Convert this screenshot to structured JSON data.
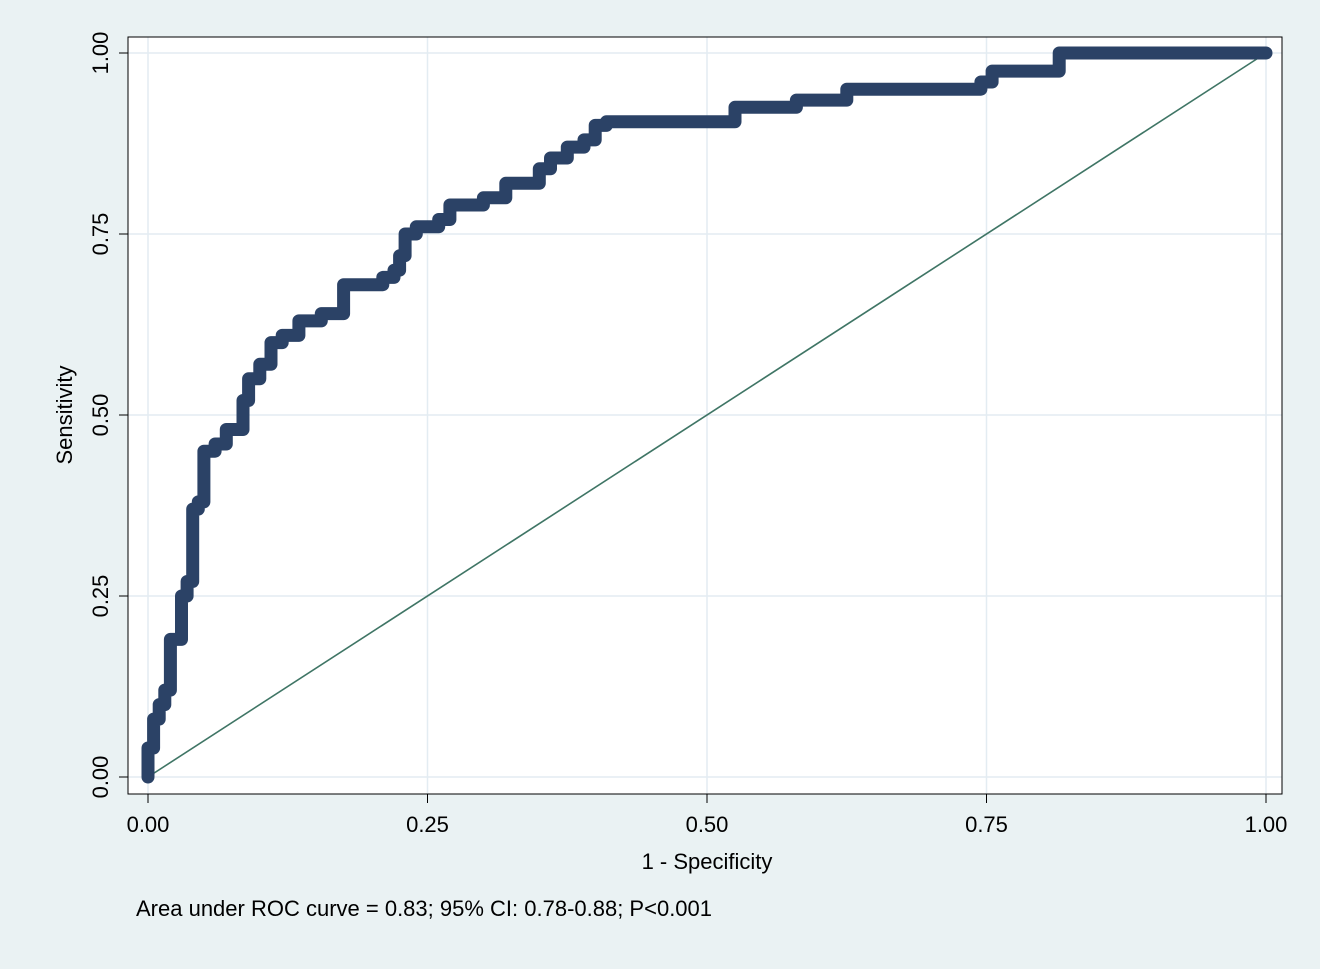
{
  "chart_data": {
    "type": "line",
    "title": "",
    "xlabel": "1 - Specificity",
    "ylabel": "Sensitivity",
    "xlim": [
      0,
      1
    ],
    "ylim": [
      0,
      1
    ],
    "x_ticks": [
      "0.00",
      "0.25",
      "0.50",
      "0.75",
      "1.00"
    ],
    "y_ticks": [
      "0.00",
      "0.25",
      "0.50",
      "0.75",
      "1.00"
    ],
    "grid": true,
    "note": "Area under ROC curve = 0.83; 95% CI: 0.78-0.88; P<0.001",
    "colors": {
      "roc": "#2b4266",
      "reference": "#3f7565",
      "background": "#eaf2f3",
      "plot_bg": "#ffffff",
      "grid": "#e3ecf2"
    },
    "series": [
      {
        "values_x": [
          0,
          0,
          0.005,
          0.005,
          0.01,
          0.01,
          0.015,
          0.015,
          0.02,
          0.02,
          0.03,
          0.03,
          0.035,
          0.035,
          0.04,
          0.04,
          0.045,
          0.045,
          0.05,
          0.05,
          0.06,
          0.06,
          0.07,
          0.07,
          0.085,
          0.085,
          0.09,
          0.09,
          0.1,
          0.1,
          0.11,
          0.11,
          0.12,
          0.12,
          0.135,
          0.135,
          0.155,
          0.155,
          0.175,
          0.175,
          0.21,
          0.21,
          0.22,
          0.22,
          0.225,
          0.225,
          0.23,
          0.23,
          0.24,
          0.24,
          0.26,
          0.26,
          0.27,
          0.27,
          0.3,
          0.3,
          0.32,
          0.32,
          0.35,
          0.35,
          0.36,
          0.36,
          0.375,
          0.375,
          0.39,
          0.39,
          0.4,
          0.4,
          0.41,
          0.41,
          0.525,
          0.525,
          0.58,
          0.58,
          0.625,
          0.625,
          0.745,
          0.745,
          0.755,
          0.755,
          0.815,
          0.815,
          1.0
        ],
        "values_y": [
          0,
          0.04,
          0.04,
          0.08,
          0.08,
          0.1,
          0.1,
          0.12,
          0.12,
          0.19,
          0.19,
          0.25,
          0.25,
          0.27,
          0.27,
          0.37,
          0.37,
          0.38,
          0.38,
          0.45,
          0.45,
          0.46,
          0.46,
          0.48,
          0.48,
          0.52,
          0.52,
          0.55,
          0.55,
          0.57,
          0.57,
          0.6,
          0.6,
          0.61,
          0.61,
          0.63,
          0.63,
          0.64,
          0.64,
          0.68,
          0.68,
          0.69,
          0.69,
          0.7,
          0.7,
          0.72,
          0.72,
          0.75,
          0.75,
          0.76,
          0.76,
          0.77,
          0.77,
          0.79,
          0.79,
          0.8,
          0.8,
          0.82,
          0.82,
          0.84,
          0.84,
          0.855,
          0.855,
          0.87,
          0.87,
          0.88,
          0.88,
          0.9,
          0.9,
          0.905,
          0.905,
          0.925,
          0.925,
          0.935,
          0.935,
          0.95,
          0.95,
          0.96,
          0.96,
          0.975,
          0.975,
          1.0,
          1.0
        ]
      },
      {
        "values_x": [
          0,
          1
        ],
        "values_y": [
          0,
          1
        ]
      }
    ]
  }
}
